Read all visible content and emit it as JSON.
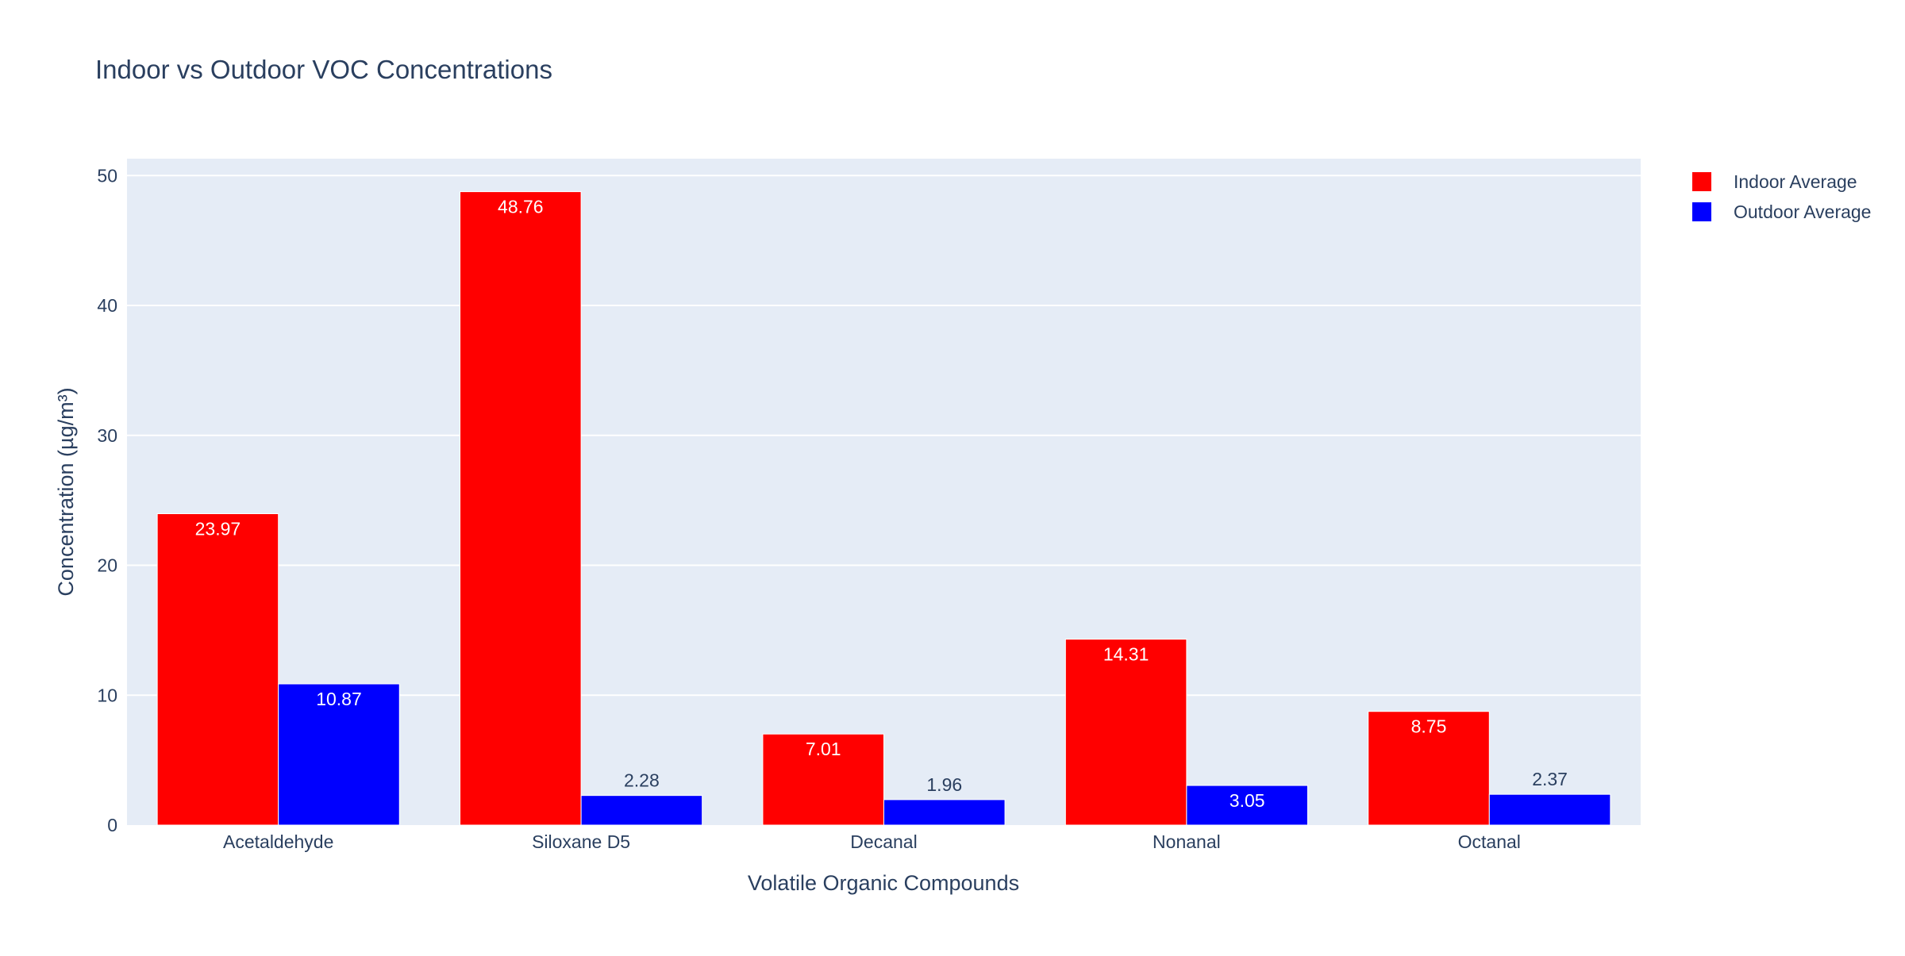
{
  "chart_data": {
    "type": "bar",
    "title": "Indoor vs Outdoor VOC Concentrations",
    "xlabel": "Volatile Organic Compounds",
    "ylabel": "Concentration (µg/m³)",
    "categories": [
      "Acetaldehyde",
      "Siloxane D5",
      "Decanal",
      "Nonanal",
      "Octanal"
    ],
    "series": [
      {
        "name": "Indoor Average",
        "color": "#ff0000",
        "values": [
          23.97,
          48.76,
          7.01,
          14.31,
          8.75
        ],
        "labels": [
          "23.97",
          "48.76",
          "7.01",
          "14.31",
          "8.75"
        ]
      },
      {
        "name": "Outdoor Average",
        "color": "#0000ff",
        "values": [
          10.87,
          2.28,
          1.96,
          3.05,
          2.37
        ],
        "labels": [
          "10.87",
          "2.28",
          "1.96",
          "3.05",
          "2.37"
        ]
      }
    ],
    "ylim": [
      0,
      51.3
    ],
    "yticks": [
      0,
      10,
      20,
      30,
      40,
      50
    ],
    "ytick_labels": [
      "0",
      "10",
      "20",
      "30",
      "40",
      "50"
    ],
    "grid": true,
    "legend_position": "top-right",
    "plot_background": "#e5ecf6",
    "text_color": "#2a3f5f"
  }
}
